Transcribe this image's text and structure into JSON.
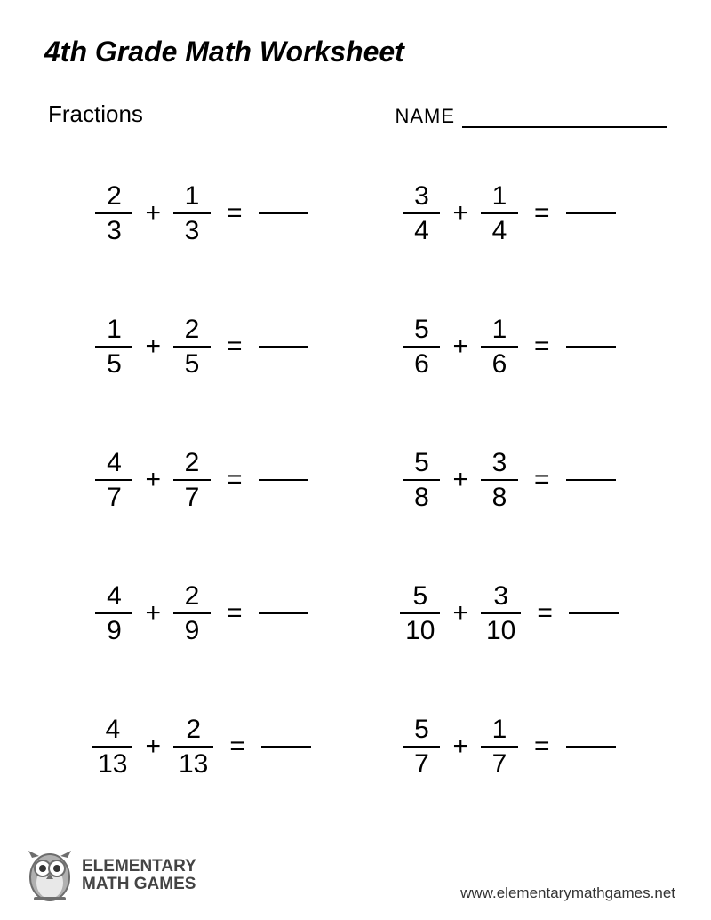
{
  "title": "4th Grade Math Worksheet",
  "topic": "Fractions",
  "name_label": "NAME",
  "operator": "+",
  "equals": "=",
  "problems": [
    {
      "a_num": "2",
      "a_den": "3",
      "b_num": "1",
      "b_den": "3"
    },
    {
      "a_num": "3",
      "a_den": "4",
      "b_num": "1",
      "b_den": "4"
    },
    {
      "a_num": "1",
      "a_den": "5",
      "b_num": "2",
      "b_den": "5"
    },
    {
      "a_num": "5",
      "a_den": "6",
      "b_num": "1",
      "b_den": "6"
    },
    {
      "a_num": "4",
      "a_den": "7",
      "b_num": "2",
      "b_den": "7"
    },
    {
      "a_num": "5",
      "a_den": "8",
      "b_num": "3",
      "b_den": "8"
    },
    {
      "a_num": "4",
      "a_den": "9",
      "b_num": "2",
      "b_den": "9"
    },
    {
      "a_num": "5",
      "a_den": "10",
      "b_num": "3",
      "b_den": "10"
    },
    {
      "a_num": "4",
      "a_den": "13",
      "b_num": "2",
      "b_den": "13"
    },
    {
      "a_num": "5",
      "a_den": "7",
      "b_num": "1",
      "b_den": "7"
    }
  ],
  "logo": {
    "line1": "ELEMENTARY",
    "line2": "MATH GAMES"
  },
  "url": "www.elementarymathgames.net",
  "colors": {
    "text": "#000000",
    "background": "#ffffff",
    "logo_text": "#444444",
    "owl_body": "#b0b0b0",
    "owl_dark": "#6d6d6d"
  },
  "fontsize": {
    "title": 32,
    "topic": 26,
    "name": 22,
    "problem": 30,
    "url": 17
  }
}
